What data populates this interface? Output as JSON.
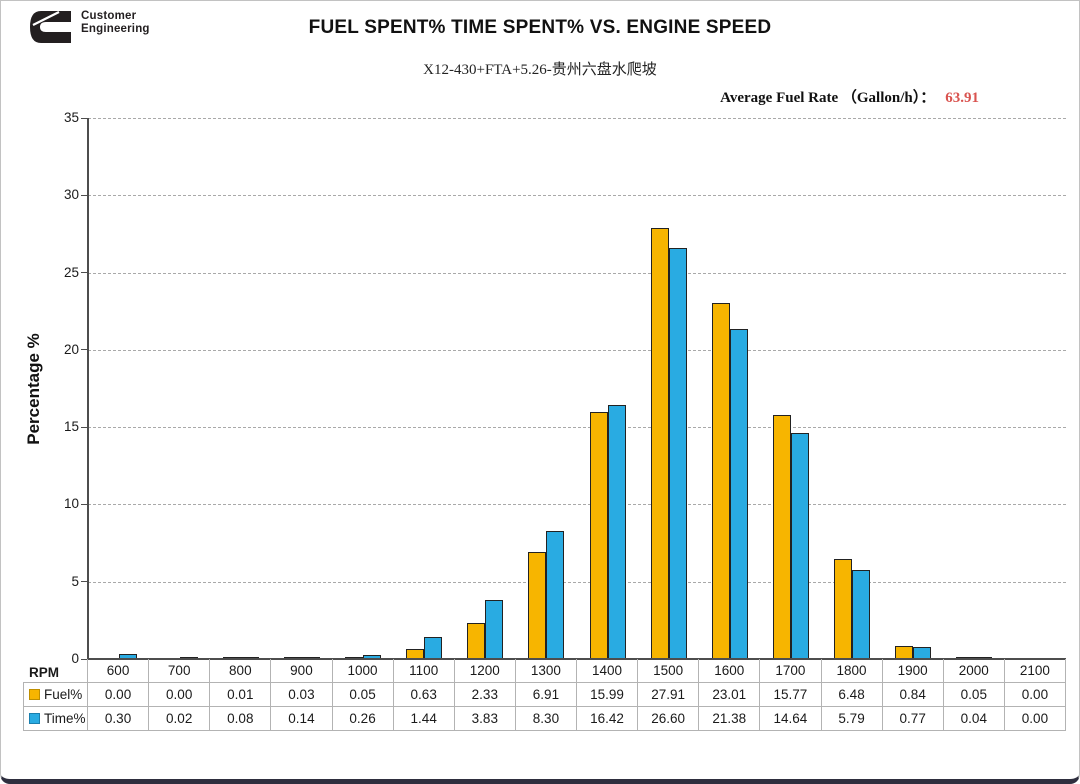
{
  "header": {
    "logo": {
      "brand": "cummins-logo",
      "line1": "Customer",
      "line2": "Engineering"
    },
    "title": "FUEL SPENT% TIME SPENT% VS. ENGINE SPEED",
    "subtitle": "X12-430+FTA+5.26-贵州六盘水爬坡",
    "avg_fuel_rate": {
      "label": "Average Fuel Rate （Gallon/h）：",
      "value": "63.91",
      "value_color": "#d9534f"
    }
  },
  "chart_data": {
    "type": "bar",
    "title": "FUEL SPENT% TIME SPENT% VS. ENGINE SPEED",
    "subtitle": "X12-430+FTA+5.26-贵州六盘水爬坡",
    "xlabel": "RPM",
    "ylabel": "Percentage %",
    "ylim": [
      0,
      35
    ],
    "ytick_step": 5,
    "grid": "horizontal-dashed",
    "legend_position": "data-table-left",
    "categories": [
      600,
      700,
      800,
      900,
      1000,
      1100,
      1200,
      1300,
      1400,
      1500,
      1600,
      1700,
      1800,
      1900,
      2000,
      2100
    ],
    "series": [
      {
        "name": "Fuel%",
        "color": "#F7B500",
        "outline_color": "#222222",
        "swatch_border": "#bf8f00",
        "values": [
          0.0,
          0.0,
          0.01,
          0.03,
          0.05,
          0.63,
          2.33,
          6.91,
          15.99,
          27.91,
          23.01,
          15.77,
          6.48,
          0.84,
          0.05,
          0.0
        ]
      },
      {
        "name": "Time%",
        "color": "#29ABE2",
        "outline_color": "#222222",
        "swatch_border": "#1a7fae",
        "values": [
          0.3,
          0.02,
          0.08,
          0.14,
          0.26,
          1.44,
          3.83,
          8.3,
          16.42,
          26.6,
          21.38,
          14.64,
          5.79,
          0.77,
          0.04,
          0.0
        ]
      }
    ]
  },
  "table": {
    "corner_label": "RPM",
    "value_format": "two-decimals"
  }
}
